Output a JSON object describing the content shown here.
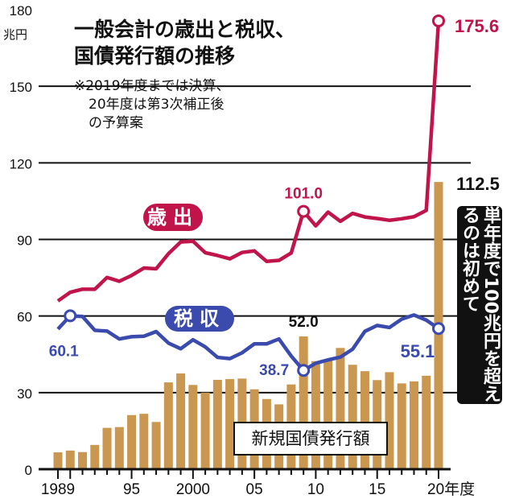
{
  "title_lines": [
    "一般会計の歳出と税収、",
    "国債発行額の推移"
  ],
  "note_lines": [
    "※2019年度までは決算、",
    "20年度は第3次補正後",
    "の予算案"
  ],
  "callout": "単年度で100兆円を超えるのは初めて",
  "colors": {
    "expenditure": "#c0144a",
    "revenue": "#3a4aad",
    "bonds": "#c9974f",
    "text": "#111111"
  },
  "chart_data": {
    "type": "bar+line",
    "ylabel": "兆円",
    "ylim": [
      0,
      180
    ],
    "yticks": [
      0,
      30,
      60,
      90,
      120,
      150,
      180
    ],
    "x": [
      1989,
      1990,
      1991,
      1992,
      1993,
      1994,
      1995,
      1996,
      1997,
      1998,
      1999,
      2000,
      2001,
      2002,
      2003,
      2004,
      2005,
      2006,
      2007,
      2008,
      2009,
      2010,
      2011,
      2012,
      2013,
      2014,
      2015,
      2016,
      2017,
      2018,
      2019,
      2020
    ],
    "xtick_labels": [
      {
        "year": 1989,
        "label": "1989"
      },
      {
        "year": 1995,
        "label": "95"
      },
      {
        "year": 2000,
        "label": "2000"
      },
      {
        "year": 2005,
        "label": "05"
      },
      {
        "year": 2010,
        "label": "10"
      },
      {
        "year": 2015,
        "label": "15"
      },
      {
        "year": 2020,
        "label": "20年度"
      }
    ],
    "grid": true,
    "series": [
      {
        "name": "歳出",
        "kind": "line",
        "values": [
          65.9,
          69.3,
          70.5,
          70.5,
          75.1,
          73.6,
          75.9,
          78.8,
          78.5,
          84.4,
          89.0,
          89.3,
          84.8,
          83.7,
          82.4,
          84.9,
          85.5,
          81.4,
          81.8,
          84.7,
          101.0,
          95.3,
          100.7,
          97.1,
          100.2,
          98.8,
          98.2,
          97.5,
          98.1,
          98.9,
          101.4,
          175.6
        ]
      },
      {
        "name": "税収",
        "kind": "line",
        "values": [
          54.9,
          60.1,
          59.8,
          54.4,
          54.1,
          51.0,
          51.9,
          52.1,
          53.9,
          49.4,
          47.2,
          50.7,
          47.9,
          43.8,
          43.3,
          45.6,
          49.1,
          49.1,
          51.0,
          44.3,
          38.7,
          41.5,
          42.8,
          43.9,
          47.0,
          54.0,
          56.3,
          55.5,
          58.8,
          60.4,
          58.4,
          55.1
        ]
      },
      {
        "name": "新規国債発行額",
        "kind": "bar",
        "values": [
          6.6,
          7.3,
          6.7,
          9.5,
          16.2,
          16.5,
          21.2,
          21.7,
          18.5,
          34.0,
          37.5,
          33.0,
          30.0,
          35.0,
          35.3,
          35.5,
          31.3,
          27.5,
          25.4,
          33.2,
          52.0,
          42.3,
          42.8,
          47.5,
          40.9,
          38.4,
          34.9,
          38.0,
          33.6,
          34.4,
          36.6,
          112.5
        ]
      }
    ],
    "annotations": [
      {
        "series": "歳出",
        "year": 2009,
        "label": "101.0"
      },
      {
        "series": "歳出",
        "year": 2020,
        "label": "175.6"
      },
      {
        "series": "税収",
        "year": 1990,
        "label": "60.1"
      },
      {
        "series": "税収",
        "year": 2009,
        "label": "38.7"
      },
      {
        "series": "税収",
        "year": 2020,
        "label": "55.1"
      },
      {
        "series": "新規国債発行額",
        "year": 2009,
        "label": "52.0"
      },
      {
        "series": "新規国債発行額",
        "year": 2020,
        "label": "112.5"
      }
    ]
  }
}
